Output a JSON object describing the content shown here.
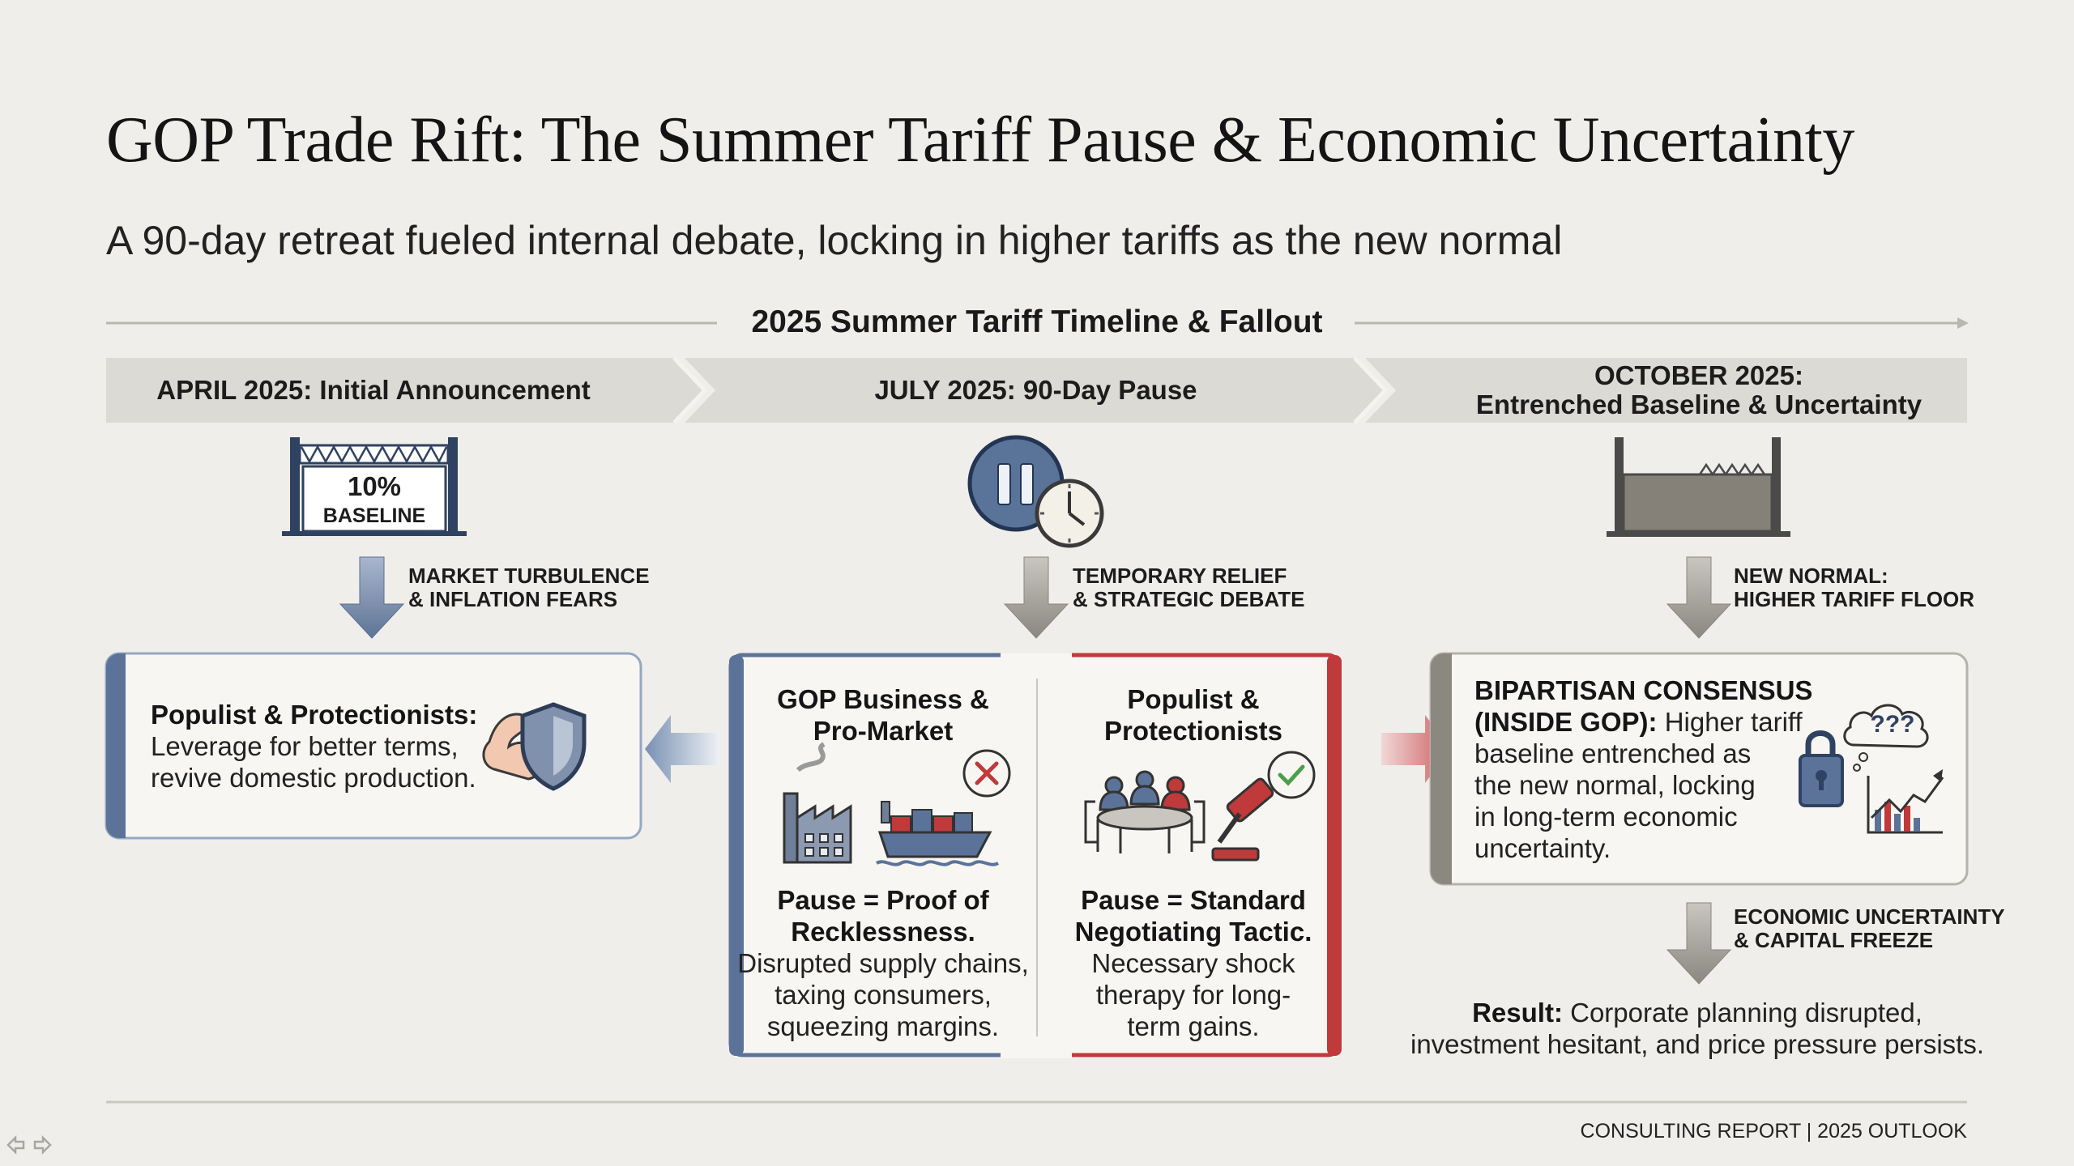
{
  "title": "GOP Trade Rift: The Summer Tariff Pause & Economic Uncertainty",
  "subtitle": "A 90-day retreat fueled internal debate, locking in higher tariffs as the new normal",
  "timeline": {
    "title": "2025 Summer Tariff Timeline & Fallout",
    "stages": [
      {
        "label": "APRIL 2025: Initial Announcement"
      },
      {
        "label": "JULY 2025: 90-Day Pause"
      },
      {
        "label_line1": "OCTOBER 2025:",
        "label_line2": "Entrenched Baseline & Uncertainty"
      }
    ]
  },
  "april": {
    "gate_value": "10%",
    "gate_label": "BASELINE",
    "arrow_line1": "MARKET TURBULENCE",
    "arrow_line2": "& INFLATION FEARS",
    "card_heading": "Populist & Protectionists:",
    "card_line1": "Leverage for better terms,",
    "card_line2": "revive domestic production."
  },
  "july": {
    "arrow_line1": "TEMPORARY RELIEF",
    "arrow_line2": "& STRATEGIC DEBATE",
    "left": {
      "heading_line1": "GOP Business &",
      "heading_line2": "Pro-Market",
      "claim_line1": "Pause = Proof of",
      "claim_line2": "Recklessness.",
      "body_line1": "Disrupted supply chains,",
      "body_line2": "taxing consumers,",
      "body_line3": "squeezing margins."
    },
    "right": {
      "heading_line1": "Populist &",
      "heading_line2": "Protectionists",
      "claim_line1": "Pause = Standard",
      "claim_line2": "Negotiating Tactic.",
      "body_line1": "Necessary shock",
      "body_line2": "therapy for long-",
      "body_line3": "term gains."
    }
  },
  "october": {
    "arrow_line1": "NEW NORMAL:",
    "arrow_line2": "HIGHER TARIFF FLOOR",
    "card_heading_line1": "BIPARTISAN CONSENSUS",
    "card_heading_line2": "(INSIDE GOP):",
    "card_line1": "Higher tariff",
    "card_line2": "baseline entrenched as",
    "card_line3": "the new normal, locking",
    "card_line4": "in long-term economic",
    "card_line5": "uncertainty.",
    "cloud_text": "???",
    "arrow2_line1": "ECONOMIC UNCERTAINTY",
    "arrow2_line2": "& CAPITAL FREEZE",
    "result_label": "Result:",
    "result_line1": "Corporate planning disrupted,",
    "result_line2": "investment hesitant, and price pressure persists."
  },
  "footer": "CONSULTING REPORT | 2025 OUTLOOK",
  "colors": {
    "blue": "#5b7399",
    "red": "#c0393b",
    "gray": "#8b8880",
    "band": "#dddbd6",
    "background": "#efeeeb"
  }
}
